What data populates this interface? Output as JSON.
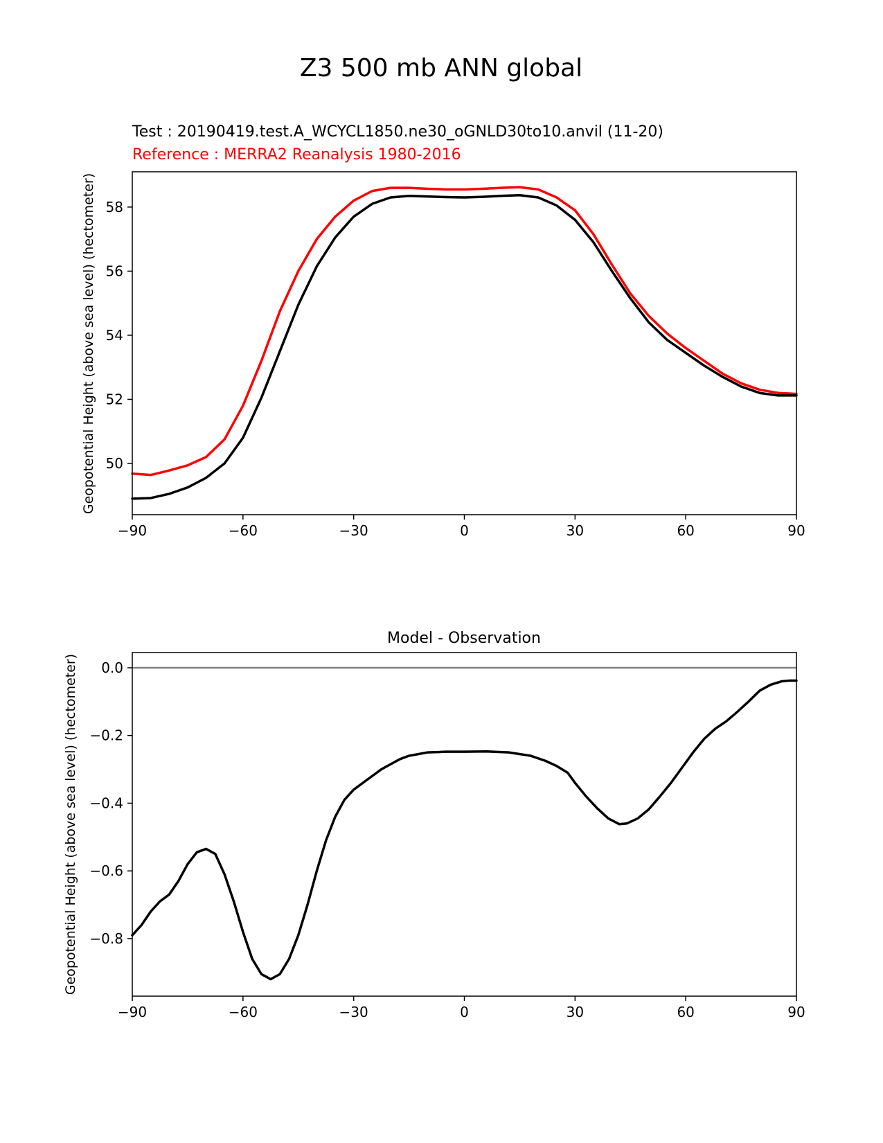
{
  "figure": {
    "suptitle": "Z3 500 mb ANN global"
  },
  "chart_data": [
    {
      "type": "line",
      "title_test": "Test : 20190419.test.A_WCYCL1850.ne30_oGNLD30to10.anvil (11-20)",
      "title_reference": "Reference : MERRA2 Reanalysis 1980-2016",
      "xlabel": "",
      "ylabel": "Geopotential Height (above sea level) (hectometer)",
      "xlim": [
        -90,
        90
      ],
      "ylim": [
        48.4,
        59.1
      ],
      "xticks": [
        -90,
        -60,
        -30,
        0,
        30,
        60,
        90
      ],
      "xtick_labels": [
        "−90",
        "−60",
        "−30",
        "0",
        "30",
        "60",
        "90"
      ],
      "yticks": [
        50,
        52,
        54,
        56,
        58
      ],
      "ytick_labels": [
        "50",
        "52",
        "54",
        "56",
        "58"
      ],
      "series": [
        {
          "name": "Reference : MERRA2 Reanalysis 1980-2016",
          "color": "#ff0000",
          "x": [
            -90,
            -85,
            -80,
            -75,
            -70,
            -65,
            -60,
            -55,
            -50,
            -45,
            -40,
            -35,
            -30,
            -25,
            -20,
            -15,
            -10,
            -5,
            0,
            5,
            10,
            15,
            20,
            25,
            30,
            35,
            40,
            45,
            50,
            55,
            60,
            65,
            70,
            75,
            80,
            85,
            90
          ],
          "values": [
            49.68,
            49.64,
            49.78,
            49.94,
            50.2,
            50.75,
            51.8,
            53.2,
            54.75,
            56.0,
            57.0,
            57.7,
            58.2,
            58.5,
            58.6,
            58.6,
            58.57,
            58.55,
            58.55,
            58.57,
            58.6,
            58.62,
            58.55,
            58.3,
            57.9,
            57.15,
            56.2,
            55.3,
            54.6,
            54.05,
            53.6,
            53.2,
            52.8,
            52.5,
            52.3,
            52.2,
            52.17
          ]
        },
        {
          "name": "Test : 20190419.test.A_WCYCL1850.ne30_oGNLD30to10.anvil (11-20)",
          "color": "#000000",
          "x": [
            -90,
            -85,
            -80,
            -75,
            -70,
            -65,
            -60,
            -55,
            -50,
            -45,
            -40,
            -35,
            -30,
            -25,
            -20,
            -15,
            -10,
            -5,
            0,
            5,
            10,
            15,
            20,
            25,
            30,
            35,
            40,
            45,
            50,
            55,
            60,
            65,
            70,
            75,
            80,
            85,
            90
          ],
          "values": [
            48.9,
            48.92,
            49.05,
            49.25,
            49.55,
            50.0,
            50.8,
            52.05,
            53.5,
            54.95,
            56.15,
            57.05,
            57.7,
            58.1,
            58.3,
            58.35,
            58.33,
            58.31,
            58.3,
            58.32,
            58.35,
            58.37,
            58.3,
            58.05,
            57.6,
            56.9,
            56.0,
            55.15,
            54.4,
            53.85,
            53.45,
            53.05,
            52.7,
            52.4,
            52.2,
            52.12,
            52.12
          ]
        }
      ]
    },
    {
      "type": "line",
      "title": "Model - Observation",
      "xlabel": "",
      "ylabel": "Geopotential Height (above sea level) (hectometer)",
      "xlim": [
        -90,
        90
      ],
      "ylim": [
        -0.97,
        0.045
      ],
      "xticks": [
        -90,
        -60,
        -30,
        0,
        30,
        60,
        90
      ],
      "xtick_labels": [
        "−90",
        "−60",
        "−30",
        "0",
        "30",
        "60",
        "90"
      ],
      "yticks": [
        0.0,
        -0.2,
        -0.4,
        -0.6,
        -0.8
      ],
      "ytick_labels": [
        "0.0",
        "−0.2",
        "−0.4",
        "−0.6",
        "−0.8"
      ],
      "reference_line": {
        "y": 0.0,
        "color": "#808080"
      },
      "series": [
        {
          "name": "Model - Observation",
          "color": "#000000",
          "x": [
            -90,
            -87.5,
            -85,
            -82.5,
            -80,
            -77.5,
            -75,
            -72.5,
            -70,
            -67.5,
            -65,
            -62.5,
            -60,
            -57.5,
            -55,
            -52.5,
            -50,
            -47.5,
            -45,
            -42.5,
            -40,
            -37.5,
            -35,
            -32.5,
            -30,
            -27.5,
            -25,
            -22.5,
            -20,
            -17.5,
            -15,
            -12.5,
            -10,
            -5,
            0,
            6,
            12,
            18,
            22,
            25,
            28,
            30,
            33,
            36,
            39,
            42,
            44,
            47,
            50,
            53,
            56,
            59,
            62,
            65,
            68,
            71,
            74,
            77,
            80,
            83,
            86,
            88,
            90
          ],
          "values": [
            -0.79,
            -0.76,
            -0.72,
            -0.69,
            -0.67,
            -0.63,
            -0.58,
            -0.545,
            -0.535,
            -0.55,
            -0.61,
            -0.69,
            -0.78,
            -0.86,
            -0.905,
            -0.92,
            -0.905,
            -0.86,
            -0.79,
            -0.7,
            -0.6,
            -0.51,
            -0.44,
            -0.39,
            -0.36,
            -0.34,
            -0.32,
            -0.3,
            -0.285,
            -0.27,
            -0.26,
            -0.255,
            -0.25,
            -0.248,
            -0.248,
            -0.247,
            -0.25,
            -0.26,
            -0.275,
            -0.29,
            -0.31,
            -0.34,
            -0.38,
            -0.415,
            -0.445,
            -0.462,
            -0.46,
            -0.445,
            -0.418,
            -0.38,
            -0.34,
            -0.295,
            -0.25,
            -0.21,
            -0.18,
            -0.158,
            -0.13,
            -0.1,
            -0.068,
            -0.05,
            -0.04,
            -0.038,
            -0.038
          ]
        }
      ]
    }
  ]
}
